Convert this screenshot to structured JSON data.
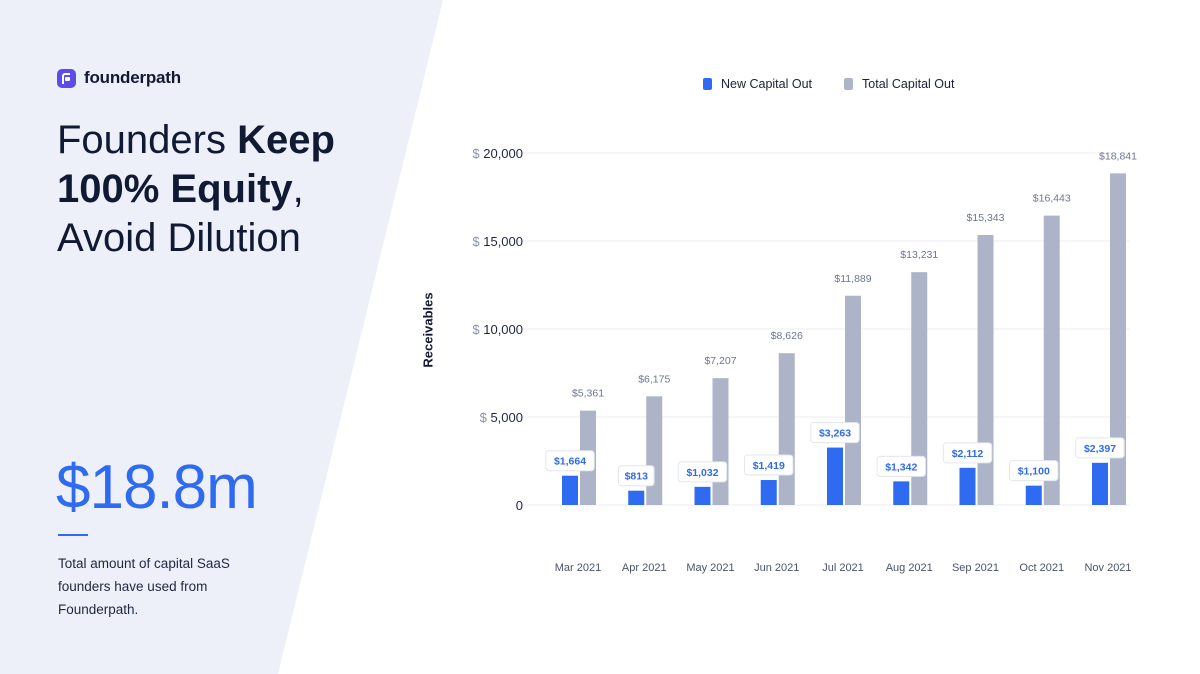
{
  "brand": {
    "name": "founderpath"
  },
  "headline": {
    "line1_plain": "Founders ",
    "line1_bold": "Keep",
    "line2_bold": "100% Equity",
    "line2_plain": ",",
    "line3_plain": "Avoid Dilution"
  },
  "stat": {
    "value": "$18.8m",
    "description": "Total amount of capital SaaS founders have used from Founderpath."
  },
  "colors": {
    "accent": "#2f6bf0",
    "total_bar": "#adb4c8",
    "new_bar": "#2f6bf0",
    "panel": "#edf0f8"
  },
  "chart_data": {
    "type": "bar",
    "title": "",
    "xlabel": "",
    "ylabel": "Receivables",
    "ylim": [
      0,
      20000
    ],
    "yticks": [
      0,
      5000,
      10000,
      15000,
      20000
    ],
    "ytick_labels": [
      "0",
      "5,000",
      "10,000",
      "15,000",
      "20,000"
    ],
    "ytick_prefix": "$",
    "categories": [
      "Mar 2021",
      "Apr 2021",
      "May 2021",
      "Jun 2021",
      "Jul 2021",
      "Aug 2021",
      "Sep 2021",
      "Oct 2021",
      "Nov 2021"
    ],
    "series": [
      {
        "name": "New Capital Out",
        "color": "#2f6bf0",
        "values": [
          1664,
          813,
          1032,
          1419,
          3263,
          1342,
          2112,
          1100,
          2397
        ],
        "labels": [
          "$1,664",
          "$813",
          "$1,032",
          "$1,419",
          "$3,263",
          "$1,342",
          "$2,112",
          "$1,100",
          "$2,397"
        ]
      },
      {
        "name": "Total Capital Out",
        "color": "#adb4c8",
        "values": [
          5361,
          6175,
          7207,
          8626,
          11889,
          13231,
          15343,
          16443,
          18841
        ],
        "labels": [
          "$5,361",
          "$6,175",
          "$7,207",
          "$8,626",
          "$11,889",
          "$13,231",
          "$15,343",
          "$16,443",
          "$18,841"
        ]
      }
    ],
    "legend": "top"
  }
}
